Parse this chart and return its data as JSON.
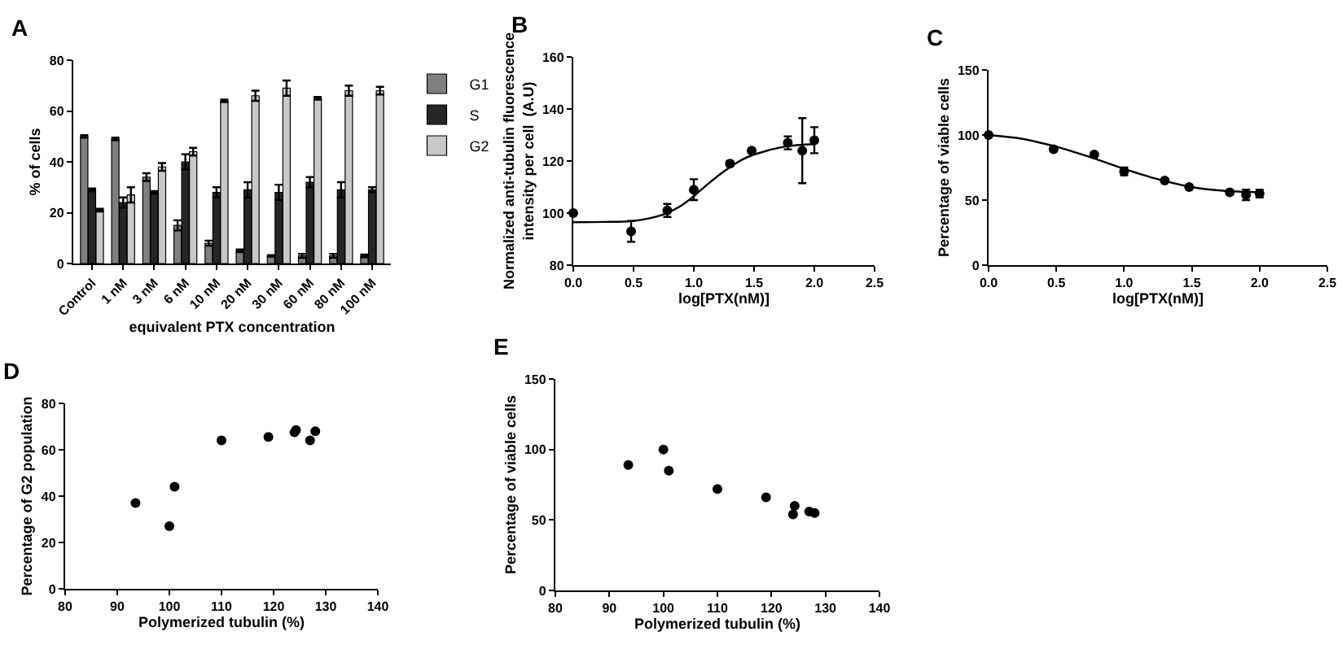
{
  "chart_data": [
    {
      "type": "bar",
      "title": "A",
      "xlabel": "equivalent PTX concentration",
      "ylabel": "% of cells",
      "categories": [
        "Control",
        "1 nM",
        "3 nM",
        "6 nM",
        "10 nM",
        "20 nM",
        "30 nM",
        "60 nM",
        "80 nM",
        "100 nM"
      ],
      "ylim": [
        0,
        80
      ],
      "yticks": [
        0,
        20,
        40,
        60,
        80
      ],
      "legend": "right",
      "series": [
        {
          "name": "G1",
          "color": "#7f7f7f",
          "values": [
            50,
            49,
            34,
            15,
            8,
            5,
            3,
            3,
            3,
            3
          ],
          "errors": [
            0.5,
            0.5,
            1.5,
            2,
            1,
            0.5,
            0.3,
            0.8,
            0.8,
            0.5
          ]
        },
        {
          "name": "S",
          "color": "#262626",
          "values": [
            29,
            24,
            28,
            40,
            28,
            29,
            28,
            32,
            29,
            29
          ],
          "errors": [
            0.5,
            2,
            0.5,
            3,
            2,
            3,
            3,
            2,
            3,
            1
          ]
        },
        {
          "name": "G2",
          "color": "#c8c8c8",
          "values": [
            21,
            27,
            38,
            44,
            64,
            66,
            69,
            65,
            68,
            68
          ],
          "errors": [
            0.5,
            3,
            1.5,
            1.5,
            0.5,
            2,
            3,
            0.5,
            2,
            1.5
          ]
        }
      ]
    },
    {
      "type": "scatter",
      "title": "B",
      "xlabel": "log[PTX(nM)]",
      "ylabel": "Normalized anti-tubulin fluorescence intensity per cell  (A.U)",
      "xlim": [
        0,
        2.5
      ],
      "xticks": [
        {
          "value": 0,
          "label": "0.0"
        },
        0.5,
        {
          "value": 1,
          "label": "1.0"
        },
        1.5,
        {
          "value": 2,
          "label": "2.0"
        },
        2.5
      ],
      "ylim": [
        80,
        160
      ],
      "yticks": [
        80,
        100,
        120,
        140,
        160
      ],
      "marker": "circle",
      "series": [
        {
          "type": "scatter",
          "color": "#000000",
          "x": [
            0,
            0.48,
            0.78,
            1.0,
            1.3,
            1.48,
            1.78,
            1.9,
            2.0
          ],
          "values": [
            100,
            93,
            101,
            109,
            119,
            124,
            127,
            124,
            128
          ],
          "errors": [
            0,
            4,
            2.5,
            4,
            1,
            0.5,
            2.5,
            12.5,
            5
          ]
        },
        {
          "type": "line",
          "marker": "none",
          "color": "#000000",
          "x": [
            0,
            0.25,
            0.5,
            0.75,
            0.9,
            1.0,
            1.1,
            1.25,
            1.4,
            1.5,
            1.75,
            2.0
          ],
          "values": [
            96.5,
            96.6,
            97,
            99.5,
            103,
            106.5,
            110.5,
            116,
            120.5,
            122.5,
            125.5,
            126.5
          ]
        }
      ]
    },
    {
      "type": "scatter",
      "title": "C",
      "xlabel": "log[PTX(nM)]",
      "ylabel": "Percentage of viable cells",
      "xlim": [
        0,
        2.5
      ],
      "xticks": [
        {
          "value": 0,
          "label": "0.0"
        },
        0.5,
        {
          "value": 1,
          "label": "1.0"
        },
        1.5,
        {
          "value": 2,
          "label": "2.0"
        },
        2.5
      ],
      "ylim": [
        0,
        150
      ],
      "yticks": [
        0,
        50,
        100,
        150
      ],
      "marker": "circle",
      "series": [
        {
          "type": "scatter",
          "color": "#000000",
          "x": [
            0,
            0.48,
            0.78,
            1.0,
            1.3,
            1.48,
            1.78,
            1.9,
            2.0
          ],
          "values": [
            100,
            89,
            85,
            72,
            65,
            60,
            56,
            54,
            55
          ],
          "errors": [
            0,
            1,
            1,
            3,
            1,
            1,
            1,
            4,
            3
          ]
        },
        {
          "type": "line",
          "marker": "none",
          "color": "#000000",
          "x": [
            0,
            0.25,
            0.5,
            0.75,
            1.0,
            1.25,
            1.5,
            1.75,
            2.0
          ],
          "values": [
            100,
            97,
            91,
            83,
            74,
            66,
            60,
            57,
            56
          ]
        }
      ]
    },
    {
      "type": "scatter",
      "title": "D",
      "xlabel": "Polymerized tubulin (%)",
      "ylabel": "Percentage of G2 population",
      "xlim": [
        80,
        140
      ],
      "xticks": [
        80,
        90,
        100,
        110,
        120,
        130,
        140
      ],
      "ylim": [
        0,
        80
      ],
      "yticks": [
        0,
        20,
        40,
        60,
        80
      ],
      "marker": "circle",
      "series": [
        {
          "color": "#000000",
          "x": [
            93.5,
            100,
            101,
            110,
            119,
            124,
            124.3,
            127,
            128
          ],
          "values": [
            37,
            27,
            44,
            64,
            65.5,
            67.5,
            68.5,
            64,
            68
          ]
        }
      ]
    },
    {
      "type": "scatter",
      "title": "E",
      "xlabel": "Polymerized tubulin (%)",
      "ylabel": "Percentage of viable cells",
      "xlim": [
        80,
        140
      ],
      "xticks": [
        80,
        90,
        100,
        110,
        120,
        130,
        140
      ],
      "ylim": [
        0,
        150
      ],
      "yticks": [
        0,
        50,
        100,
        150
      ],
      "marker": "circle",
      "series": [
        {
          "color": "#000000",
          "x": [
            93.5,
            100,
            101,
            110,
            119,
            124,
            124.3,
            127,
            128
          ],
          "values": [
            89,
            100,
            85,
            72,
            66,
            54,
            60,
            56,
            55
          ]
        }
      ]
    }
  ]
}
